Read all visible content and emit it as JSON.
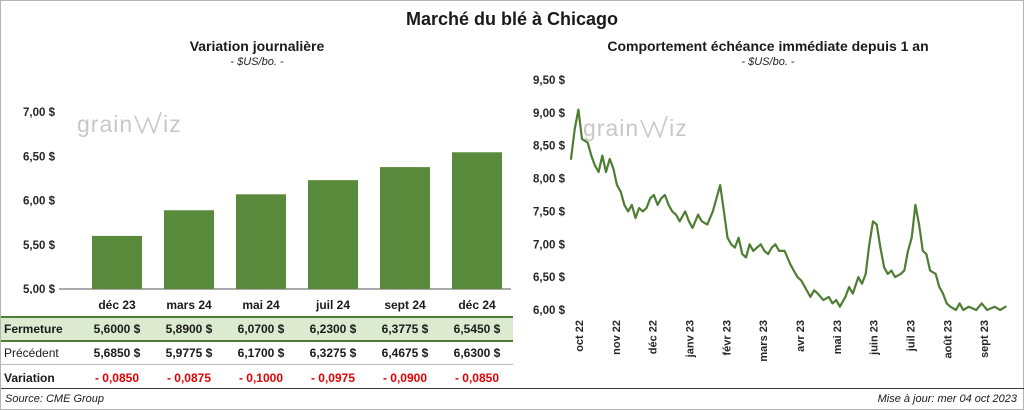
{
  "page": {
    "title": "Marché du blé à Chicago",
    "source": "Source: CME Group",
    "updated": "Mise à jour: mer 04 oct 2023",
    "watermark": {
      "pre": "grain",
      "post": "iz"
    }
  },
  "colors": {
    "bar_green": "#5a8a3b",
    "line_green": "#4e7e33",
    "fermeture_bg": "#dcebd0",
    "fermeture_border": "#4f7d33",
    "variation_red": "#e60000",
    "axis_text": "#262626"
  },
  "chart_data": [
    {
      "type": "bar",
      "title": "Variation  journalière",
      "subtitle": "- $US/bo. -",
      "categories": [
        "déc 23",
        "mars 24",
        "mai 24",
        "juil 24",
        "sept 24",
        "déc 24"
      ],
      "values": [
        5.6,
        5.89,
        6.07,
        6.23,
        6.3775,
        6.545
      ],
      "ylim": [
        5.0,
        7.0
      ],
      "ytick_labels": [
        "7,00 $",
        "6,50 $",
        "6,00 $",
        "5,50 $",
        "5,00 $"
      ],
      "grid": false,
      "legend": "none"
    },
    {
      "type": "line",
      "title": "Comportement  échéance  immédiate  depuis 1 an",
      "subtitle": "- $US/bo. -",
      "x_labels": [
        "oct 22",
        "nov 22",
        "déc 22",
        "janv 23",
        "févr 23",
        "mars 23",
        "avr 23",
        "mai 23",
        "juin 23",
        "juil 23",
        "août 23",
        "sept 23"
      ],
      "ylim": [
        6.0,
        9.5
      ],
      "ytick_labels": [
        "9,50 $",
        "9,00 $",
        "8,50 $",
        "8,00 $",
        "7,50 $",
        "7,00 $",
        "6,50 $",
        "6,00 $"
      ],
      "grid": false,
      "legend": "none",
      "points": [
        [
          0.0,
          8.3
        ],
        [
          0.1,
          8.75
        ],
        [
          0.2,
          9.05
        ],
        [
          0.3,
          8.6
        ],
        [
          0.45,
          8.55
        ],
        [
          0.55,
          8.35
        ],
        [
          0.65,
          8.2
        ],
        [
          0.75,
          8.1
        ],
        [
          0.85,
          8.35
        ],
        [
          0.95,
          8.1
        ],
        [
          1.05,
          8.3
        ],
        [
          1.15,
          8.15
        ],
        [
          1.25,
          7.9
        ],
        [
          1.35,
          7.8
        ],
        [
          1.45,
          7.6
        ],
        [
          1.55,
          7.5
        ],
        [
          1.65,
          7.6
        ],
        [
          1.75,
          7.4
        ],
        [
          1.85,
          7.55
        ],
        [
          1.95,
          7.5
        ],
        [
          2.05,
          7.55
        ],
        [
          2.15,
          7.7
        ],
        [
          2.25,
          7.75
        ],
        [
          2.35,
          7.6
        ],
        [
          2.45,
          7.7
        ],
        [
          2.55,
          7.75
        ],
        [
          2.65,
          7.6
        ],
        [
          2.75,
          7.5
        ],
        [
          2.85,
          7.45
        ],
        [
          2.95,
          7.35
        ],
        [
          3.1,
          7.5
        ],
        [
          3.2,
          7.35
        ],
        [
          3.3,
          7.25
        ],
        [
          3.45,
          7.45
        ],
        [
          3.55,
          7.35
        ],
        [
          3.7,
          7.3
        ],
        [
          3.85,
          7.5
        ],
        [
          3.95,
          7.7
        ],
        [
          4.05,
          7.9
        ],
        [
          4.15,
          7.5
        ],
        [
          4.25,
          7.1
        ],
        [
          4.35,
          7.0
        ],
        [
          4.45,
          6.95
        ],
        [
          4.55,
          7.1
        ],
        [
          4.65,
          6.85
        ],
        [
          4.75,
          6.8
        ],
        [
          4.85,
          7.0
        ],
        [
          4.95,
          6.9
        ],
        [
          5.05,
          6.95
        ],
        [
          5.15,
          7.0
        ],
        [
          5.25,
          6.9
        ],
        [
          5.35,
          6.85
        ],
        [
          5.45,
          6.95
        ],
        [
          5.55,
          7.0
        ],
        [
          5.65,
          6.9
        ],
        [
          5.8,
          6.9
        ],
        [
          5.95,
          6.7
        ],
        [
          6.05,
          6.6
        ],
        [
          6.15,
          6.5
        ],
        [
          6.25,
          6.45
        ],
        [
          6.35,
          6.35
        ],
        [
          6.5,
          6.2
        ],
        [
          6.6,
          6.3
        ],
        [
          6.7,
          6.25
        ],
        [
          6.85,
          6.15
        ],
        [
          7.0,
          6.2
        ],
        [
          7.1,
          6.1
        ],
        [
          7.2,
          6.15
        ],
        [
          7.3,
          6.05
        ],
        [
          7.45,
          6.2
        ],
        [
          7.55,
          6.35
        ],
        [
          7.65,
          6.25
        ],
        [
          7.8,
          6.5
        ],
        [
          7.9,
          6.4
        ],
        [
          8.0,
          6.55
        ],
        [
          8.1,
          7.0
        ],
        [
          8.2,
          7.35
        ],
        [
          8.3,
          7.3
        ],
        [
          8.4,
          6.95
        ],
        [
          8.5,
          6.65
        ],
        [
          8.6,
          6.55
        ],
        [
          8.7,
          6.6
        ],
        [
          8.8,
          6.5
        ],
        [
          8.95,
          6.55
        ],
        [
          9.05,
          6.6
        ],
        [
          9.15,
          6.9
        ],
        [
          9.25,
          7.1
        ],
        [
          9.35,
          7.6
        ],
        [
          9.45,
          7.3
        ],
        [
          9.55,
          6.9
        ],
        [
          9.65,
          6.85
        ],
        [
          9.75,
          6.6
        ],
        [
          9.9,
          6.55
        ],
        [
          10.0,
          6.35
        ],
        [
          10.1,
          6.25
        ],
        [
          10.2,
          6.1
        ],
        [
          10.3,
          6.05
        ],
        [
          10.45,
          6.0
        ],
        [
          10.55,
          6.1
        ],
        [
          10.65,
          6.0
        ],
        [
          10.8,
          6.05
        ],
        [
          11.0,
          6.0
        ],
        [
          11.15,
          6.1
        ],
        [
          11.3,
          6.0
        ],
        [
          11.5,
          6.05
        ],
        [
          11.65,
          6.0
        ],
        [
          11.8,
          6.05
        ]
      ]
    }
  ],
  "table": {
    "rows": [
      {
        "label": "Fermeture",
        "kind": "fermeture",
        "values": [
          "5,6000  $",
          "5,8900  $",
          "6,0700  $",
          "6,2300  $",
          "6,3775  $",
          "6,5450  $"
        ]
      },
      {
        "label": "Précédent",
        "kind": "precedent",
        "values": [
          "5,6850  $",
          "5,9775  $",
          "6,1700  $",
          "6,3275  $",
          "6,4675  $",
          "6,6300  $"
        ]
      },
      {
        "label": "Variation",
        "kind": "variation",
        "values": [
          "- 0,0850",
          "- 0,0875",
          "- 0,1000",
          "- 0,0975",
          "- 0,0900",
          "- 0,0850"
        ]
      }
    ]
  }
}
